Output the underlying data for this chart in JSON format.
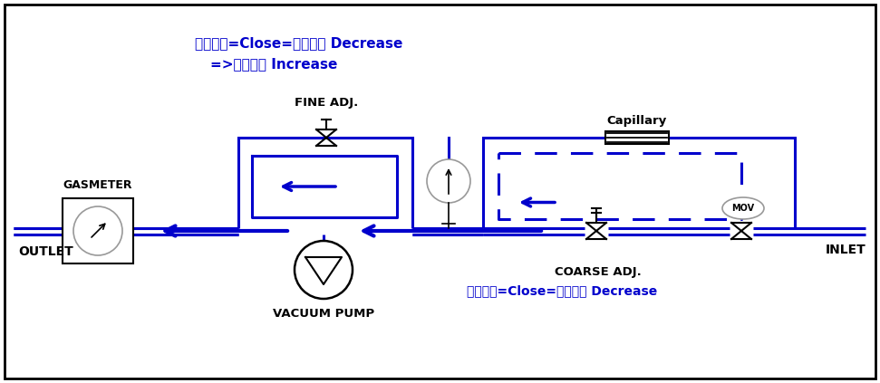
{
  "bg_color": "white",
  "blue": "#0000cc",
  "black": "black",
  "gray": "#999999",
  "title_text1": "시계방향=Close=순환유량 Decrease",
  "title_text2": "=>흡입유량 Increase",
  "fine_adj_label": "FINE ADJ.",
  "capillary_label": "Capillary",
  "gasmeter_label": "GASMETER",
  "outlet_label": "OUTLET",
  "vacuum_pump_label": "VACUUM PUMP",
  "coarse_adj_label": "COARSE ADJ.",
  "coarse_note": "시계방향=Close=흡입유량 Decrease",
  "inlet_label": "INLET",
  "mov_label": "MOV",
  "fig_w": 9.71,
  "fig_h": 4.23,
  "dpi": 100
}
